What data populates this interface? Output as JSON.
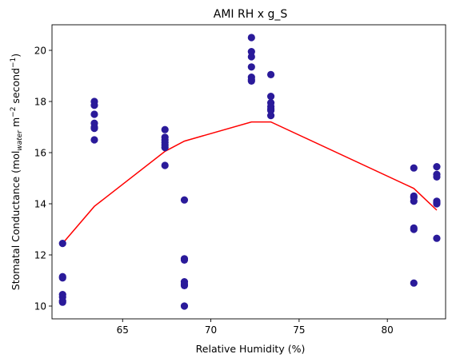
{
  "chart_data": {
    "type": "scatter",
    "title": "AMI RH x g_S",
    "xlabel": "Relative Humidity (%)",
    "ylabel": {
      "prefix": "Stomatal Conductance (mol",
      "sub": "water",
      "mid": " m",
      "sup1": "−2",
      "mid2": " second",
      "sup2": "−1",
      "suffix": ")"
    },
    "xlim": [
      61.0,
      83.3
    ],
    "ylim": [
      9.5,
      21.0
    ],
    "xticks": [
      65,
      70,
      75,
      80
    ],
    "yticks": [
      10,
      12,
      14,
      16,
      18,
      20
    ],
    "grid": false,
    "legend": "none",
    "colors": {
      "points": "#2a1a9a",
      "fit_line": "#ff0000"
    },
    "series": [
      {
        "kind": "points",
        "x": [
          61.6,
          61.6,
          61.6,
          61.6,
          61.6,
          61.6,
          61.6,
          63.4,
          63.4,
          63.4,
          63.4,
          63.4,
          63.4,
          63.4,
          67.4,
          67.4,
          67.4,
          67.4,
          67.4,
          67.4,
          67.4,
          68.5,
          68.5,
          68.5,
          68.5,
          68.5,
          68.5,
          68.5,
          72.3,
          72.3,
          72.3,
          72.3,
          72.3,
          72.3,
          72.3,
          73.4,
          73.4,
          73.4,
          73.4,
          73.4,
          73.4,
          73.4,
          81.5,
          81.5,
          81.5,
          81.5,
          81.5,
          81.5,
          81.5,
          82.8,
          82.8,
          82.8,
          82.8,
          82.8,
          82.8,
          82.8
        ],
        "y": [
          12.45,
          11.15,
          11.1,
          10.45,
          10.35,
          10.2,
          10.15,
          18.0,
          17.85,
          17.5,
          17.15,
          16.95,
          16.5,
          17.0,
          16.9,
          16.6,
          16.5,
          16.4,
          16.2,
          15.5,
          16.3,
          14.15,
          11.85,
          11.8,
          10.95,
          10.8,
          10.0,
          10.85,
          20.5,
          19.95,
          19.75,
          19.35,
          18.95,
          18.8,
          18.85,
          19.05,
          18.2,
          17.95,
          17.8,
          17.65,
          17.45,
          17.7,
          15.4,
          14.3,
          14.1,
          13.05,
          13.0,
          10.9,
          14.25,
          15.45,
          15.15,
          15.05,
          14.1,
          14.0,
          12.65,
          14.05
        ]
      },
      {
        "kind": "line",
        "x": [
          61.6,
          63.4,
          67.4,
          68.5,
          72.3,
          73.4,
          81.5,
          82.8
        ],
        "y": [
          12.45,
          13.9,
          16.05,
          16.45,
          17.2,
          17.2,
          14.6,
          13.75
        ]
      }
    ]
  }
}
